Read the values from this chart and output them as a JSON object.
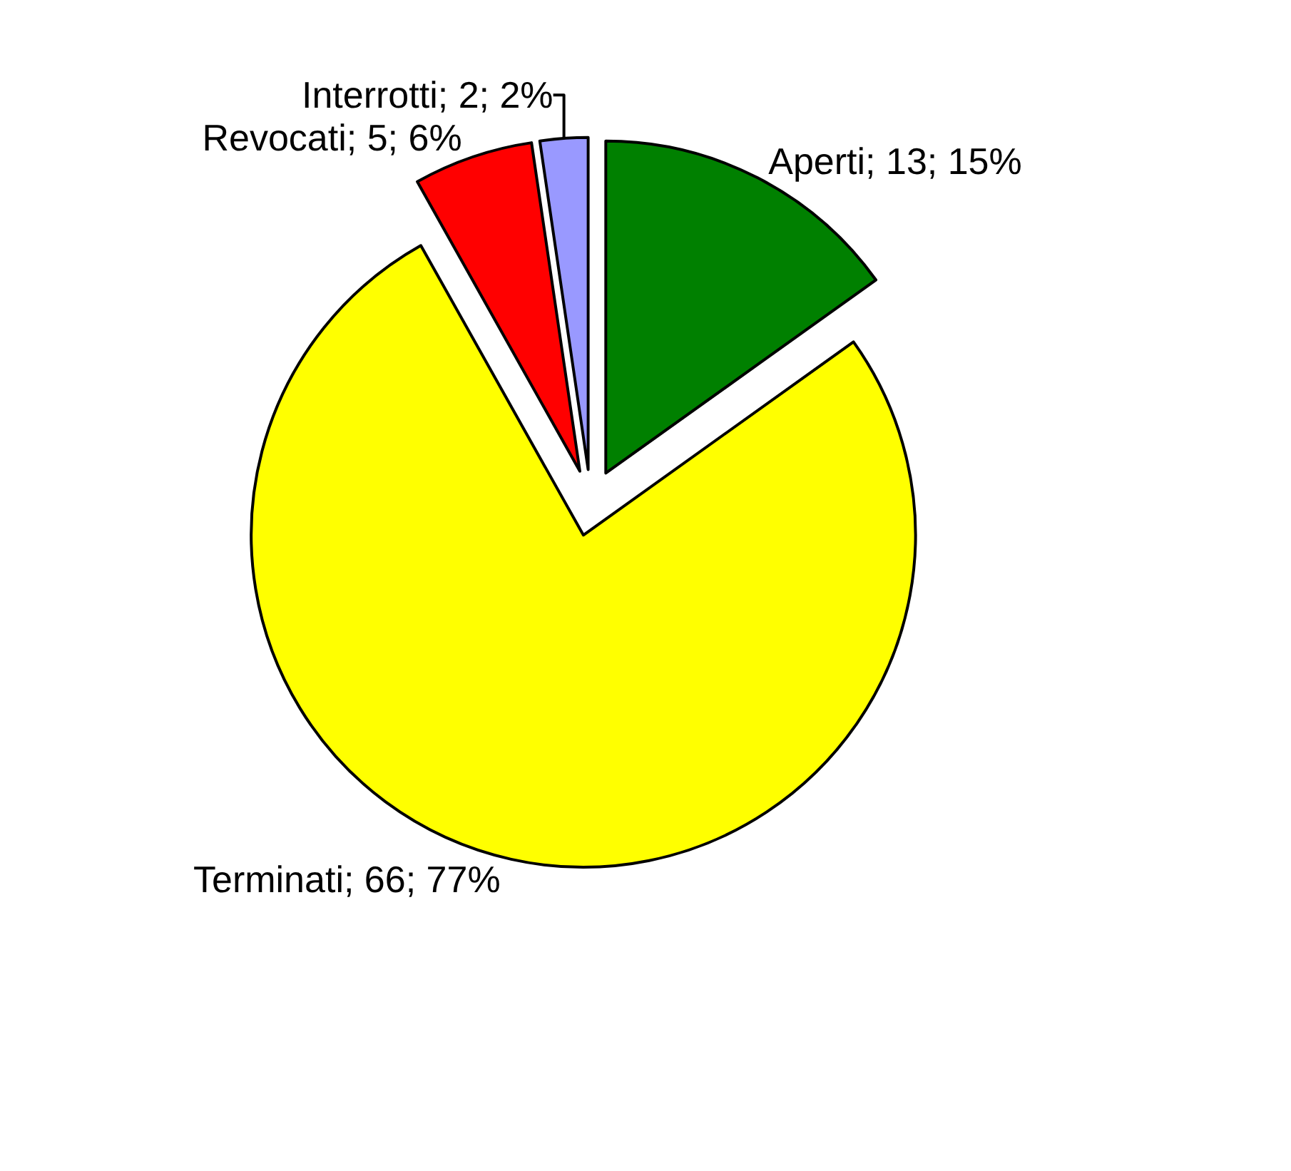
{
  "chart_data": {
    "type": "pie",
    "categories": [
      "Aperti",
      "Terminati",
      "Revocati",
      "Interrotti"
    ],
    "values": [
      13,
      66,
      5,
      2
    ],
    "colors": [
      "#008000",
      "#ffff00",
      "#ff0000",
      "#9999ff"
    ],
    "value_labels": [
      "13; 15%",
      "66; 77%",
      "5; 6%",
      "2; 2%"
    ]
  }
}
